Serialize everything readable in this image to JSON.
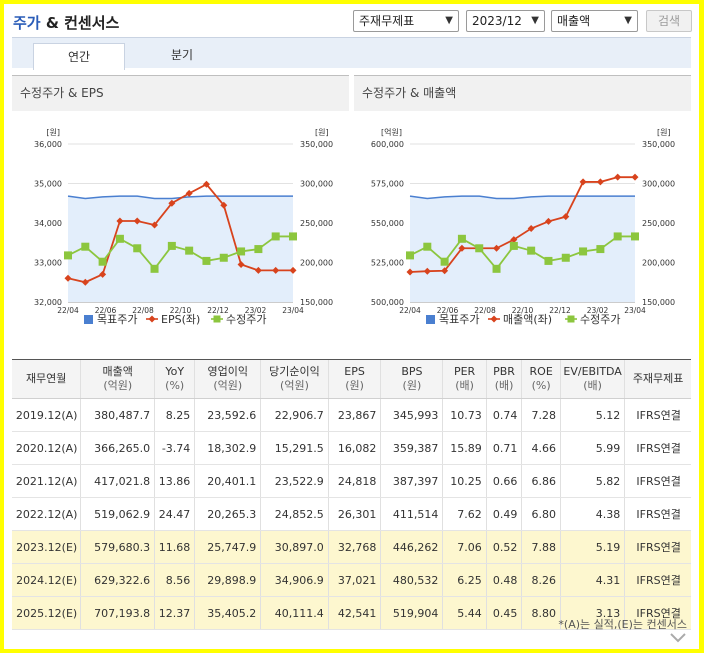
{
  "header": {
    "title_part1": "주가",
    "title_part2": " & 컨센서스",
    "select_basis": "주재무제표",
    "select_period": "2023/12",
    "select_metric": "매출액",
    "search_label": "검색"
  },
  "tabs": [
    {
      "label": "연간",
      "active": true
    },
    {
      "label": "분기",
      "active": false
    }
  ],
  "charts": [
    {
      "title": "수정주가 & EPS",
      "left_unit": "[원]",
      "right_unit": "[원]",
      "left_ticks": [
        "36,000",
        "35,000",
        "34,000",
        "33,000",
        "32,000"
      ],
      "right_ticks": [
        "350,000",
        "300,000",
        "250,000",
        "200,000",
        "150,000"
      ],
      "x_ticks": [
        "22/04",
        "22/06",
        "22/08",
        "22/10",
        "22/12",
        "23/02",
        "23/04"
      ],
      "legend": [
        "목표주가",
        "EPS(좌)",
        "수정주가"
      ]
    },
    {
      "title": "수정주가 & 매출액",
      "left_unit": "[억원]",
      "right_unit": "[원]",
      "left_ticks": [
        "600,000",
        "575,000",
        "550,000",
        "525,000",
        "500,000"
      ],
      "right_ticks": [
        "350,000",
        "300,000",
        "250,000",
        "200,000",
        "150,000"
      ],
      "x_ticks": [
        "22/04",
        "22/06",
        "22/08",
        "22/10",
        "22/12",
        "23/02",
        "23/04"
      ],
      "legend": [
        "목표주가",
        "매출액(좌)",
        "수정주가"
      ]
    }
  ],
  "chart_data": [
    {
      "type": "line",
      "title": "수정주가 & EPS",
      "x": [
        "22/04",
        "22/05",
        "22/06",
        "22/07",
        "22/08",
        "22/09",
        "22/10",
        "22/11",
        "22/12",
        "23/01",
        "23/02",
        "23/03",
        "23/04",
        "23/05"
      ],
      "left_ylim": [
        32000,
        36000
      ],
      "right_ylim": [
        150000,
        350000
      ],
      "series": [
        {
          "name": "목표주가",
          "axis": "right",
          "color": "#4a7fd0",
          "values": [
            284000,
            281000,
            283000,
            284000,
            284000,
            281000,
            281000,
            283000,
            284000,
            284000,
            284000,
            284000,
            284000,
            284000
          ]
        },
        {
          "name": "EPS(좌)",
          "axis": "left",
          "color": "#d8431d",
          "values": [
            32600,
            32500,
            32700,
            34050,
            34050,
            33950,
            34500,
            34750,
            34980,
            34450,
            32950,
            32800,
            32800,
            32800
          ]
        },
        {
          "name": "수정주가",
          "axis": "right",
          "color": "#8cc63e",
          "values": [
            209000,
            220000,
            201000,
            230000,
            218000,
            192000,
            221000,
            215000,
            202000,
            206000,
            214000,
            217000,
            233000,
            233000
          ]
        }
      ]
    },
    {
      "type": "line",
      "title": "수정주가 & 매출액",
      "x": [
        "22/04",
        "22/05",
        "22/06",
        "22/07",
        "22/08",
        "22/09",
        "22/10",
        "22/11",
        "22/12",
        "23/01",
        "23/02",
        "23/03",
        "23/04",
        "23/05"
      ],
      "left_ylim": [
        500000,
        600000
      ],
      "right_ylim": [
        150000,
        350000
      ],
      "series": [
        {
          "name": "목표주가",
          "axis": "right",
          "color": "#4a7fd0",
          "values": [
            284000,
            281000,
            283000,
            284000,
            284000,
            281000,
            281000,
            283000,
            284000,
            284000,
            284000,
            284000,
            284000,
            284000
          ]
        },
        {
          "name": "매출액(좌)",
          "axis": "left",
          "color": "#d8431d",
          "values": [
            519000,
            519500,
            519800,
            534000,
            534000,
            534000,
            539500,
            546500,
            551000,
            554000,
            576000,
            576000,
            579000,
            579000
          ]
        },
        {
          "name": "수정주가",
          "axis": "right",
          "color": "#8cc63e",
          "values": [
            209000,
            220000,
            201000,
            230000,
            218000,
            192000,
            221000,
            215000,
            202000,
            206000,
            214000,
            217000,
            233000,
            233000
          ]
        }
      ]
    }
  ],
  "table": {
    "headers": [
      {
        "l1": "재무연월",
        "l2": ""
      },
      {
        "l1": "매출액",
        "l2": "(억원)"
      },
      {
        "l1": "YoY",
        "l2": "(%)"
      },
      {
        "l1": "영업이익",
        "l2": "(억원)"
      },
      {
        "l1": "당기순이익",
        "l2": "(억원)"
      },
      {
        "l1": "EPS",
        "l2": "(원)"
      },
      {
        "l1": "BPS",
        "l2": "(원)"
      },
      {
        "l1": "PER",
        "l2": "(배)"
      },
      {
        "l1": "PBR",
        "l2": "(배)"
      },
      {
        "l1": "ROE",
        "l2": "(%)"
      },
      {
        "l1": "EV/EBITDA",
        "l2": "(배)"
      },
      {
        "l1": "주재무제표",
        "l2": ""
      }
    ],
    "rows": [
      [
        "2019.12(A)",
        "380,487.7",
        "8.25",
        "23,592.6",
        "22,906.7",
        "23,867",
        "345,993",
        "10.73",
        "0.74",
        "7.28",
        "5.12",
        "IFRS연결"
      ],
      [
        "2020.12(A)",
        "366,265.0",
        "-3.74",
        "18,302.9",
        "15,291.5",
        "16,082",
        "359,387",
        "15.89",
        "0.71",
        "4.66",
        "5.99",
        "IFRS연결"
      ],
      [
        "2021.12(A)",
        "417,021.8",
        "13.86",
        "20,401.1",
        "23,522.9",
        "24,818",
        "387,397",
        "10.25",
        "0.66",
        "6.86",
        "5.82",
        "IFRS연결"
      ],
      [
        "2022.12(A)",
        "519,062.9",
        "24.47",
        "20,265.3",
        "24,852.5",
        "26,301",
        "411,514",
        "7.62",
        "0.49",
        "6.80",
        "4.38",
        "IFRS연결"
      ],
      [
        "2023.12(E)",
        "579,680.3",
        "11.68",
        "25,747.9",
        "30,897.0",
        "32,768",
        "446,262",
        "7.06",
        "0.52",
        "7.88",
        "5.19",
        "IFRS연결"
      ],
      [
        "2024.12(E)",
        "629,322.6",
        "8.56",
        "29,898.9",
        "34,906.9",
        "37,021",
        "480,532",
        "6.25",
        "0.48",
        "8.26",
        "4.31",
        "IFRS연결"
      ],
      [
        "2025.12(E)",
        "707,193.8",
        "12.37",
        "35,405.2",
        "40,111.4",
        "42,541",
        "519,904",
        "5.44",
        "0.45",
        "8.80",
        "3.13",
        "IFRS연결"
      ]
    ],
    "estimate_flags": [
      false,
      false,
      false,
      false,
      true,
      true,
      true
    ]
  },
  "footnote": "*(A)는 실적,(E)는 컨센서스"
}
